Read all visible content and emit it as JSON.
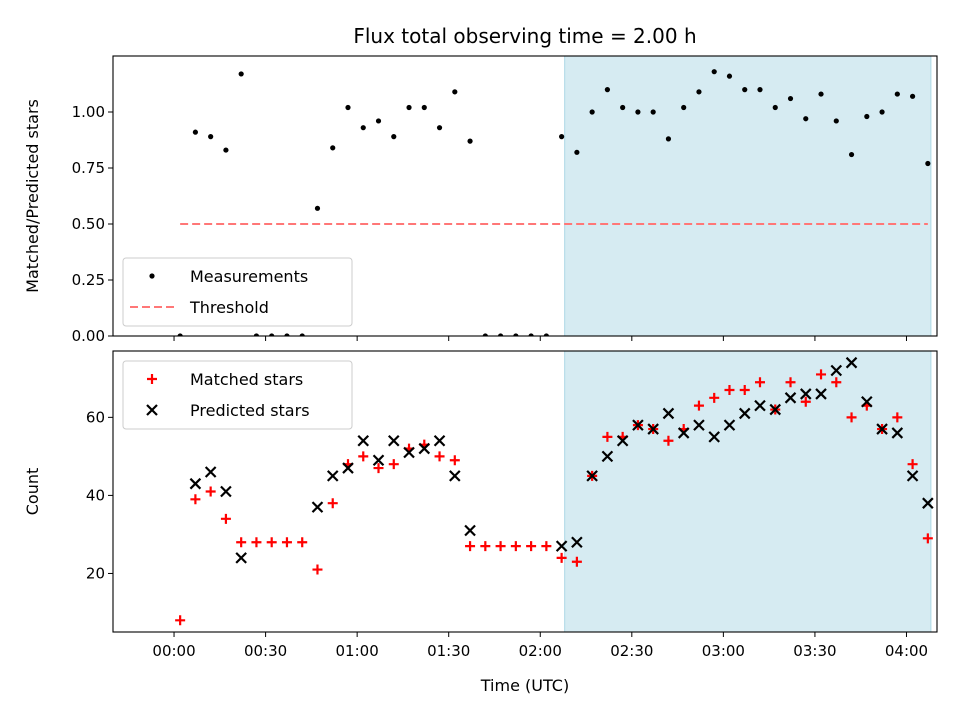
{
  "chart_data": [
    {
      "type": "scatter",
      "title": "Flux total observing time = 2.00 h",
      "xlabel": "",
      "ylabel": "Matched/Predicted stars",
      "ylim": [
        0,
        1.25
      ],
      "yticks": [
        0.0,
        0.25,
        0.5,
        0.75,
        1.0
      ],
      "ytick_labels": [
        "0.00",
        "0.25",
        "0.50",
        "0.75",
        "1.00"
      ],
      "xlim_minutes": [
        -20,
        250
      ],
      "highlight_span_minutes": [
        128,
        248
      ],
      "highlight_color": "#add8e6",
      "legend_position": "lower-left",
      "series": [
        {
          "name": "Measurements",
          "marker": "dot",
          "color": "#000000",
          "x_minutes": [
            2,
            7,
            12,
            17,
            22,
            27,
            32,
            37,
            42,
            47,
            52,
            57,
            62,
            67,
            72,
            77,
            82,
            87,
            92,
            97,
            102,
            107,
            112,
            117,
            122,
            127,
            132,
            137,
            142,
            147,
            152,
            157,
            162,
            167,
            172,
            177,
            182,
            187,
            192,
            197,
            202,
            207,
            212,
            217,
            222,
            227,
            232,
            237,
            242,
            247
          ],
          "y": [
            0.0,
            0.91,
            0.89,
            0.83,
            1.17,
            0.0,
            0.0,
            0.0,
            0.0,
            0.57,
            0.84,
            1.02,
            0.93,
            0.96,
            0.89,
            1.02,
            1.02,
            0.93,
            1.09,
            0.87,
            0.0,
            0.0,
            0.0,
            0.0,
            0.0,
            0.89,
            0.82,
            1.0,
            1.1,
            1.02,
            1.0,
            1.0,
            0.88,
            1.02,
            1.09,
            1.18,
            1.16,
            1.1,
            1.1,
            1.02,
            1.06,
            0.97,
            1.08,
            0.96,
            0.81,
            0.98,
            1.0,
            1.08,
            1.07,
            0.77
          ]
        },
        {
          "name": "Threshold",
          "marker": "dashed-line",
          "color": "#ff7777",
          "x_minutes": [
            2,
            247
          ],
          "y": [
            0.5,
            0.5
          ]
        }
      ]
    },
    {
      "type": "scatter",
      "title": "",
      "xlabel": "Time (UTC)",
      "ylabel": "Count",
      "ylim": [
        5,
        77
      ],
      "yticks": [
        20,
        40,
        60
      ],
      "ytick_labels": [
        "20",
        "40",
        "60"
      ],
      "xlim_minutes": [
        -20,
        250
      ],
      "xticks_minutes": [
        0,
        30,
        60,
        90,
        120,
        150,
        180,
        210,
        240
      ],
      "xtick_labels": [
        "00:00",
        "00:30",
        "01:00",
        "01:30",
        "02:00",
        "02:30",
        "03:00",
        "03:30",
        "04:00"
      ],
      "highlight_span_minutes": [
        128,
        248
      ],
      "highlight_color": "#add8e6",
      "legend_position": "upper-left",
      "series": [
        {
          "name": "Matched stars",
          "marker": "plus",
          "color": "#ff0000",
          "x_minutes": [
            2,
            7,
            12,
            17,
            22,
            27,
            32,
            37,
            42,
            47,
            52,
            57,
            62,
            67,
            72,
            77,
            82,
            87,
            92,
            97,
            102,
            107,
            112,
            117,
            122,
            127,
            132,
            137,
            142,
            147,
            152,
            157,
            162,
            167,
            172,
            177,
            182,
            187,
            192,
            197,
            202,
            207,
            212,
            217,
            222,
            227,
            232,
            237,
            242,
            247
          ],
          "y": [
            8,
            39,
            41,
            34,
            28,
            28,
            28,
            28,
            28,
            21,
            38,
            48,
            50,
            47,
            48,
            52,
            53,
            50,
            49,
            27,
            27,
            27,
            27,
            27,
            27,
            24,
            23,
            45,
            55,
            55,
            58,
            57,
            54,
            57,
            63,
            65,
            67,
            67,
            69,
            62,
            69,
            64,
            71,
            69,
            60,
            63,
            57,
            60,
            48,
            29
          ]
        },
        {
          "name": "Predicted stars",
          "marker": "x",
          "color": "#000000",
          "x_minutes": [
            7,
            12,
            17,
            22,
            47,
            52,
            57,
            62,
            67,
            72,
            77,
            82,
            87,
            92,
            97,
            127,
            132,
            137,
            142,
            147,
            152,
            157,
            162,
            167,
            172,
            177,
            182,
            187,
            192,
            197,
            202,
            207,
            212,
            217,
            222,
            227,
            232,
            237,
            242,
            247
          ],
          "y": [
            43,
            46,
            41,
            24,
            37,
            45,
            47,
            54,
            49,
            54,
            51,
            52,
            54,
            45,
            31,
            27,
            28,
            45,
            50,
            54,
            58,
            57,
            61,
            56,
            58,
            55,
            58,
            61,
            63,
            62,
            65,
            66,
            66,
            72,
            74,
            64,
            57,
            56,
            45,
            38
          ]
        }
      ]
    }
  ]
}
